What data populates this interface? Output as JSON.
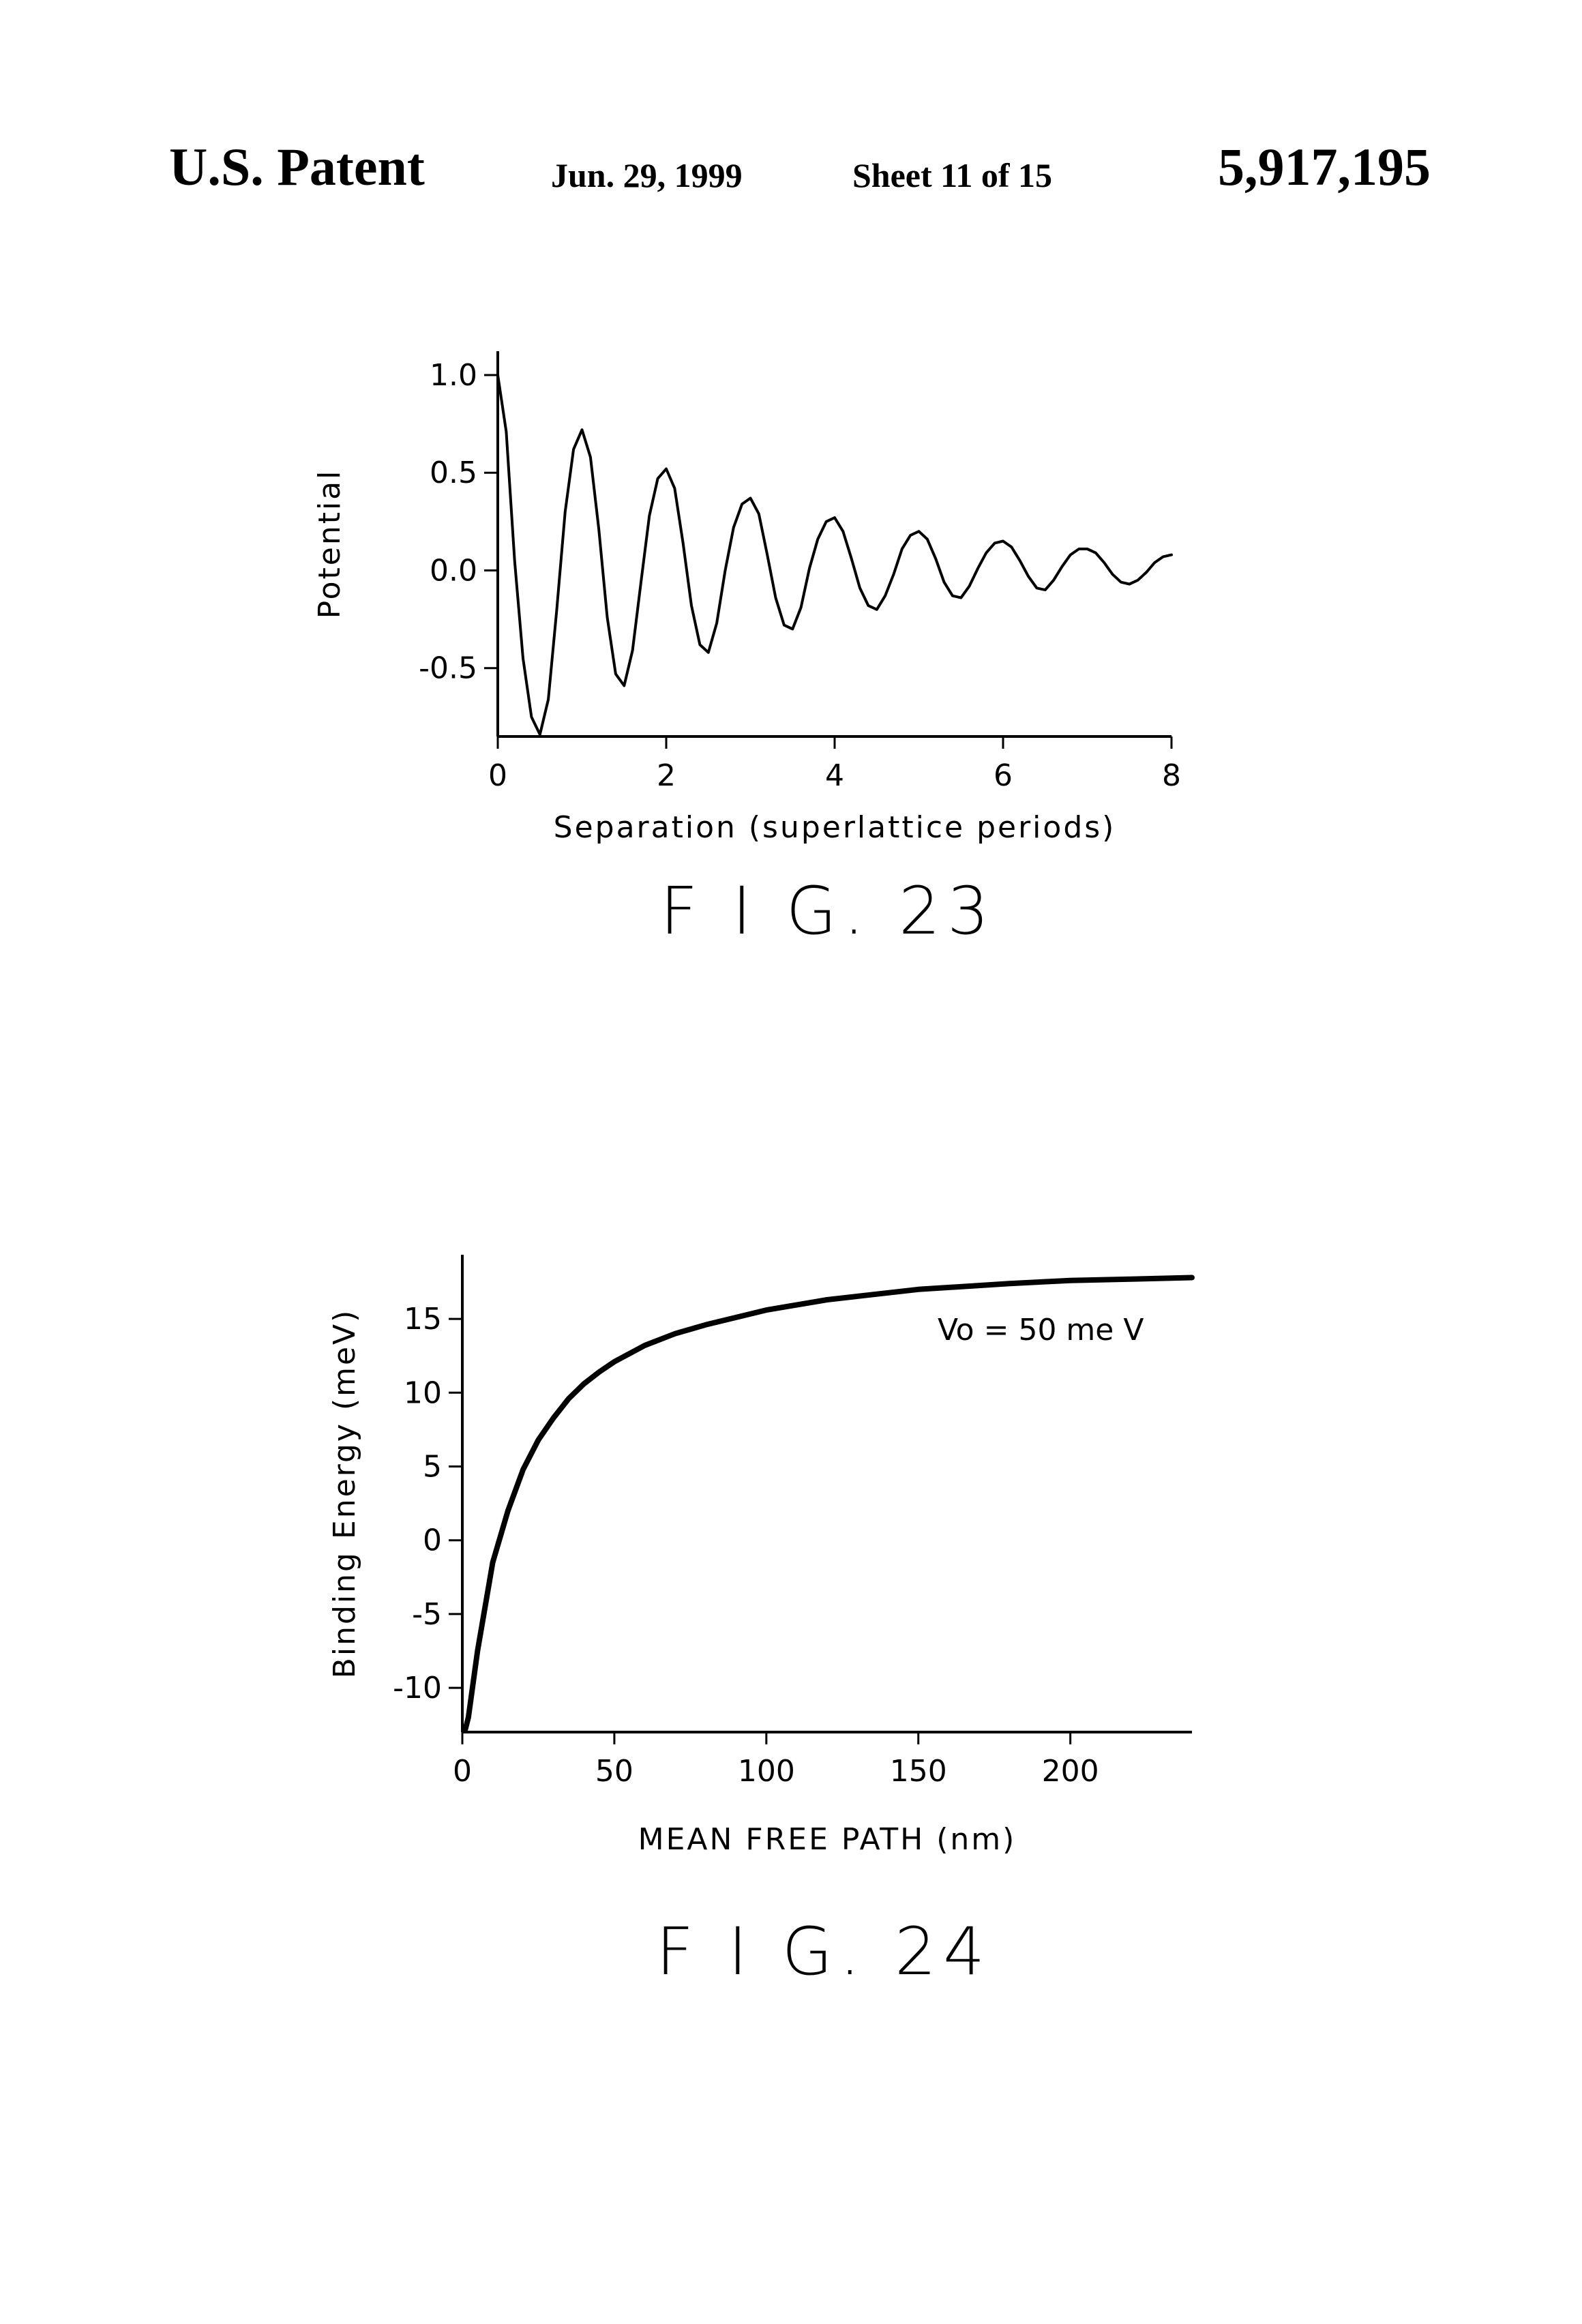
{
  "header": {
    "left": "U.S. Patent",
    "date": "Jun. 29, 1999",
    "sheet": "Sheet 11 of 15",
    "patent_number": "5,917,195"
  },
  "figures": {
    "fig23_label": "F I G. 23",
    "fig24_label": "F I G. 24"
  },
  "chart_data": [
    {
      "type": "line",
      "title": "",
      "xlabel": "Separation (superlattice periods)",
      "ylabel": "Potential",
      "xlim": [
        0,
        8
      ],
      "ylim": [
        -0.85,
        1.0
      ],
      "xticks": [
        0,
        2,
        4,
        6,
        8
      ],
      "xtick_labels": [
        "0",
        "2",
        "4",
        "6",
        "8"
      ],
      "yticks": [
        1.0,
        0.5,
        0.0,
        -0.5
      ],
      "ytick_labels": [
        "1.0",
        "0.5",
        "0.0",
        "-0.5"
      ],
      "grid": false,
      "series": [
        {
          "x": [
            0,
            0.1,
            0.2,
            0.3,
            0.4,
            0.5,
            0.6,
            0.7,
            0.8,
            0.9,
            1.0,
            1.1,
            1.2,
            1.3,
            1.4,
            1.5,
            1.6,
            1.7,
            1.8,
            1.9,
            2.0,
            2.1,
            2.2,
            2.3,
            2.4,
            2.5,
            2.6,
            2.7,
            2.8,
            2.9,
            3.0,
            3.1,
            3.2,
            3.3,
            3.4,
            3.5,
            3.6,
            3.7,
            3.8,
            3.9,
            4.0,
            4.1,
            4.2,
            4.3,
            4.4,
            4.5,
            4.6,
            4.7,
            4.8,
            4.9,
            5.0,
            5.1,
            5.2,
            5.3,
            5.4,
            5.5,
            5.6,
            5.7,
            5.8,
            5.9,
            6.0,
            6.1,
            6.2,
            6.3,
            6.4,
            6.5,
            6.6,
            6.7,
            6.8,
            6.9,
            7.0,
            7.1,
            7.2,
            7.3,
            7.4,
            7.5,
            7.6,
            7.7,
            7.8,
            7.9,
            8.0
          ],
          "values": [
            1.0,
            0.71,
            0.05,
            -0.45,
            -0.75,
            -0.84,
            -0.66,
            -0.2,
            0.3,
            0.62,
            0.72,
            0.58,
            0.21,
            -0.24,
            -0.53,
            -0.59,
            -0.41,
            -0.06,
            0.28,
            0.47,
            0.52,
            0.42,
            0.14,
            -0.18,
            -0.38,
            -0.42,
            -0.27,
            0.0,
            0.22,
            0.34,
            0.37,
            0.29,
            0.08,
            -0.14,
            -0.28,
            -0.3,
            -0.19,
            0.01,
            0.16,
            0.25,
            0.27,
            0.2,
            0.06,
            -0.09,
            -0.18,
            -0.2,
            -0.13,
            -0.02,
            0.11,
            0.18,
            0.2,
            0.16,
            0.06,
            -0.06,
            -0.13,
            -0.14,
            -0.08,
            0.01,
            0.09,
            0.14,
            0.15,
            0.12,
            0.05,
            -0.03,
            -0.09,
            -0.1,
            -0.05,
            0.02,
            0.08,
            0.11,
            0.11,
            0.09,
            0.04,
            -0.02,
            -0.06,
            -0.07,
            -0.05,
            -0.01,
            0.04,
            0.07,
            0.08
          ]
        }
      ]
    },
    {
      "type": "line",
      "title": "",
      "xlabel": "MEAN FREE PATH (nm)",
      "ylabel": "Binding Energy (meV)",
      "annotation": "Vo = 50 me V",
      "xlim": [
        0,
        240
      ],
      "ylim": [
        -13,
        17.5
      ],
      "xticks": [
        0,
        50,
        100,
        150,
        200
      ],
      "xtick_labels": [
        "0",
        "50",
        "100",
        "150",
        "200"
      ],
      "yticks": [
        15,
        10,
        5,
        0,
        -5,
        -10
      ],
      "ytick_labels": [
        "15",
        "10",
        "5",
        "0",
        "-5",
        "-10"
      ],
      "grid": false,
      "series": [
        {
          "x": [
            1,
            2,
            5,
            10,
            15,
            20,
            25,
            30,
            35,
            40,
            45,
            50,
            60,
            70,
            80,
            100,
            120,
            150,
            180,
            200,
            220,
            240
          ],
          "values": [
            -12.8,
            -12.0,
            -7.5,
            -1.5,
            2.0,
            4.8,
            6.8,
            8.3,
            9.6,
            10.6,
            11.4,
            12.1,
            13.2,
            14.0,
            14.6,
            15.6,
            16.3,
            17.0,
            17.4,
            17.6,
            17.7,
            17.8
          ]
        }
      ]
    }
  ]
}
